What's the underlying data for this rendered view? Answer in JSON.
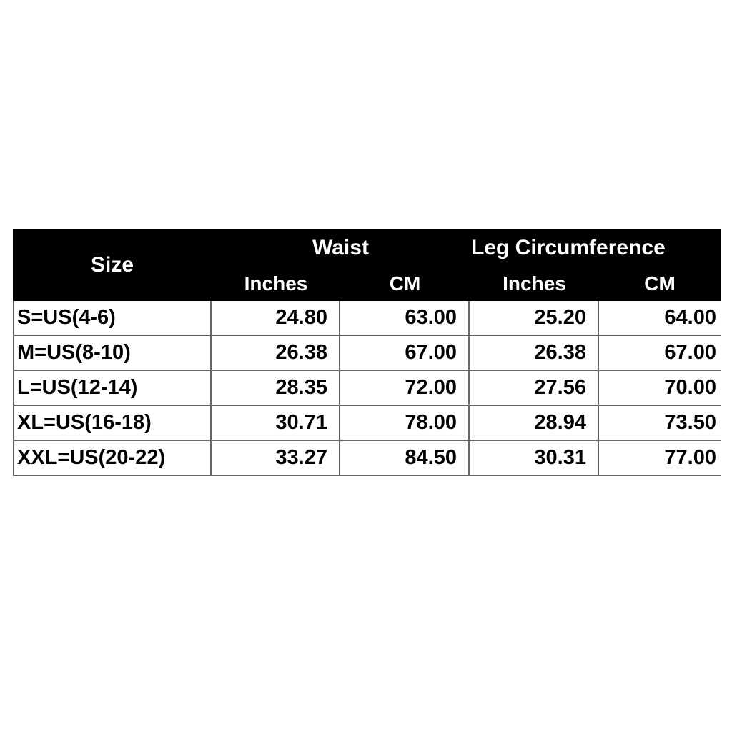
{
  "table": {
    "header": {
      "size": "Size",
      "groups": [
        {
          "label": "Waist",
          "units": [
            "Inches",
            "CM"
          ]
        },
        {
          "label": "Leg Circumference",
          "units": [
            "Inches",
            "CM"
          ]
        }
      ]
    },
    "rows": [
      [
        "S=US(4-6)",
        "24.80",
        "63.00",
        "25.20",
        "64.00"
      ],
      [
        "M=US(8-10)",
        "26.38",
        "67.00",
        "26.38",
        "67.00"
      ],
      [
        "L=US(12-14)",
        "28.35",
        "72.00",
        "27.56",
        "70.00"
      ],
      [
        "XL=US(16-18)",
        "30.71",
        "78.00",
        "28.94",
        "73.50"
      ],
      [
        "XXL=US(20-22)",
        "33.27",
        "84.50",
        "30.31",
        "77.00"
      ]
    ]
  }
}
